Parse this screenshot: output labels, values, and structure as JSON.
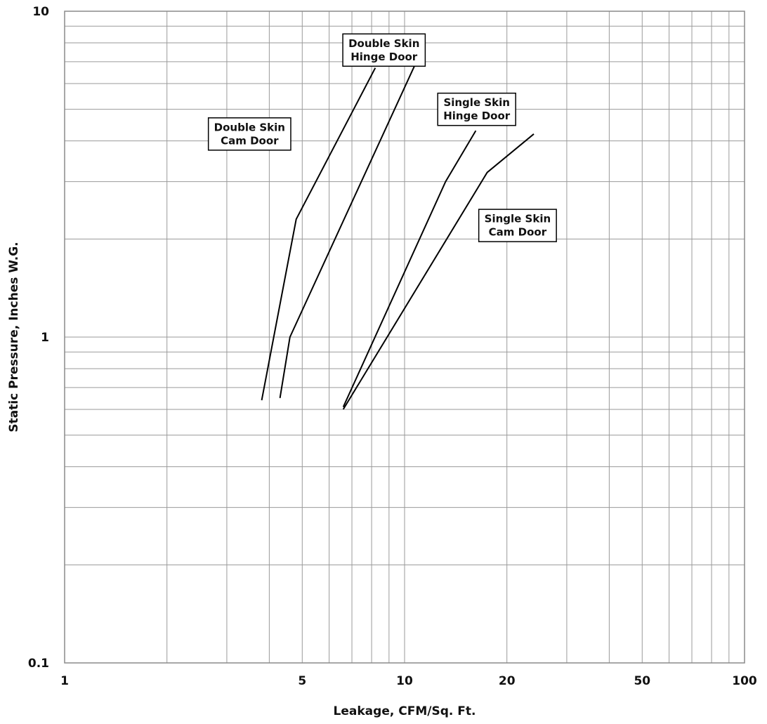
{
  "chart_data": {
    "type": "line",
    "xlabel": "Leakage, CFM/Sq. Ft.",
    "ylabel": "Static Pressure, Inches W.G.",
    "xscale": "log",
    "yscale": "log",
    "xlim": [
      1,
      100
    ],
    "ylim": [
      0.1,
      10
    ],
    "grid": true,
    "x_ticks": [
      1,
      5,
      10,
      20,
      50,
      100
    ],
    "x_tick_labels": [
      "1",
      "5",
      "10",
      "20",
      "50",
      "100"
    ],
    "y_ticks": [
      0.1,
      1,
      10
    ],
    "y_tick_labels": [
      "0.1",
      "1",
      "10"
    ],
    "series": [
      {
        "name": "Double Skin Cam Door",
        "label_lines": [
          "Double Skin",
          "Cam Door"
        ],
        "points": [
          [
            3.8,
            0.64
          ],
          [
            4.8,
            2.3
          ],
          [
            8.2,
            6.7
          ]
        ]
      },
      {
        "name": "Double Skin Hinge Door",
        "label_lines": [
          "Double Skin",
          "Hinge Door"
        ],
        "points": [
          [
            4.3,
            0.65
          ],
          [
            4.6,
            1.0
          ],
          [
            10.7,
            6.8
          ]
        ]
      },
      {
        "name": "Single Skin Hinge Door",
        "label_lines": [
          "Single Skin",
          "Hinge Door"
        ],
        "points": [
          [
            6.6,
            0.61
          ],
          [
            13.2,
            3.0
          ],
          [
            16.2,
            4.3
          ]
        ]
      },
      {
        "name": "Single Skin Cam Door",
        "label_lines": [
          "Single Skin",
          "Cam Door"
        ],
        "points": [
          [
            6.6,
            0.6
          ],
          [
            17.5,
            3.2
          ],
          [
            24.0,
            4.2
          ]
        ]
      }
    ]
  }
}
